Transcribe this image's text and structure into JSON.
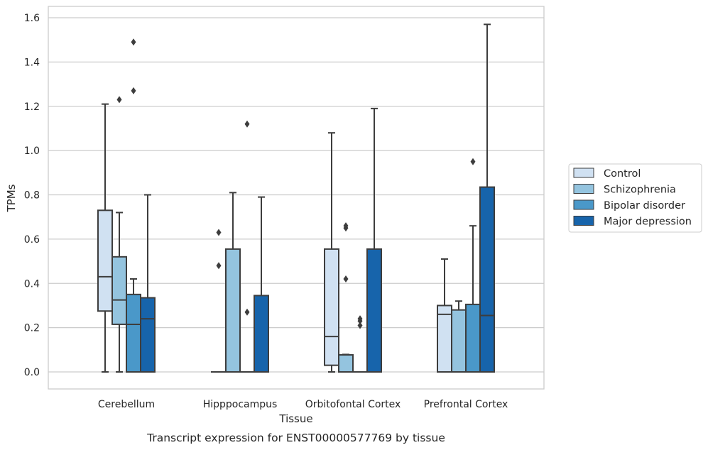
{
  "chart_data": {
    "type": "box",
    "caption": "Transcript expression for ENST00000577769 by tissue",
    "xlabel": "Tissue",
    "ylabel": "TPMs",
    "ylim": [
      -0.08,
      1.65
    ],
    "yticks": [
      "0.0",
      "0.2",
      "0.4",
      "0.6",
      "0.8",
      "1.0",
      "1.2",
      "1.4",
      "1.6"
    ],
    "ytick_values": [
      0.0,
      0.2,
      0.4,
      0.6,
      0.8,
      1.0,
      1.2,
      1.4,
      1.6
    ],
    "grid": "horizontal",
    "legend_position": "right",
    "categories": [
      "Cerebellum",
      "Hipppocampus",
      "Orbitofontal Cortex",
      "Prefrontal Cortex"
    ],
    "series": [
      {
        "name": "Control",
        "color": "#d0e1f2",
        "boxes": [
          {
            "whislo": 0.0,
            "q1": 0.275,
            "med": 0.43,
            "q3": 0.73,
            "whishi": 1.21,
            "fliers": []
          },
          {
            "whislo": 0.0,
            "q1": 0.0,
            "med": 0.0,
            "q3": 0.0,
            "whishi": 0.0,
            "fliers": [
              0.48,
              0.63
            ]
          },
          {
            "whislo": 0.0,
            "q1": 0.03,
            "med": 0.16,
            "q3": 0.555,
            "whishi": 1.08,
            "fliers": []
          },
          {
            "whislo": 0.0,
            "q1": 0.0,
            "med": 0.26,
            "q3": 0.3,
            "whishi": 0.51,
            "fliers": []
          }
        ]
      },
      {
        "name": "Schizophrenia",
        "color": "#94c4df",
        "boxes": [
          {
            "whislo": 0.0,
            "q1": 0.215,
            "med": 0.325,
            "q3": 0.52,
            "whishi": 0.72,
            "fliers": [
              1.23
            ]
          },
          {
            "whislo": 0.0,
            "q1": 0.0,
            "med": 0.0,
            "q3": 0.555,
            "whishi": 0.81,
            "fliers": []
          },
          {
            "whislo": 0.0,
            "q1": 0.0,
            "med": 0.0,
            "q3": 0.077,
            "whishi": 0.079,
            "fliers": [
              0.42,
              0.65,
              0.66
            ]
          },
          {
            "whislo": 0.0,
            "q1": 0.0,
            "med": 0.0,
            "q3": 0.28,
            "whishi": 0.32,
            "fliers": []
          }
        ]
      },
      {
        "name": "Bipolar disorder",
        "color": "#4a98c9",
        "boxes": [
          {
            "whislo": 0.0,
            "q1": 0.0,
            "med": 0.215,
            "q3": 0.35,
            "whishi": 0.42,
            "fliers": [
              1.27,
              1.49
            ]
          },
          {
            "whislo": 0.0,
            "q1": 0.0,
            "med": 0.0,
            "q3": 0.0,
            "whishi": 0.0,
            "fliers": [
              0.27,
              1.12
            ]
          },
          {
            "whislo": 0.0,
            "q1": 0.0,
            "med": 0.0,
            "q3": 0.0,
            "whishi": 0.0,
            "fliers": [
              0.21,
              0.23,
              0.24
            ]
          },
          {
            "whislo": 0.0,
            "q1": 0.0,
            "med": 0.0,
            "q3": 0.305,
            "whishi": 0.66,
            "fliers": [
              0.95
            ]
          }
        ]
      },
      {
        "name": "Major depression",
        "color": "#1764ab",
        "boxes": [
          {
            "whislo": 0.0,
            "q1": 0.0,
            "med": 0.24,
            "q3": 0.335,
            "whishi": 0.8,
            "fliers": []
          },
          {
            "whislo": 0.0,
            "q1": 0.0,
            "med": 0.0,
            "q3": 0.345,
            "whishi": 0.79,
            "fliers": []
          },
          {
            "whislo": 0.0,
            "q1": 0.0,
            "med": 0.0,
            "q3": 0.555,
            "whishi": 1.19,
            "fliers": []
          },
          {
            "whislo": 0.0,
            "q1": 0.0,
            "med": 0.255,
            "q3": 0.835,
            "whishi": 1.57,
            "fliers": []
          }
        ]
      }
    ]
  }
}
